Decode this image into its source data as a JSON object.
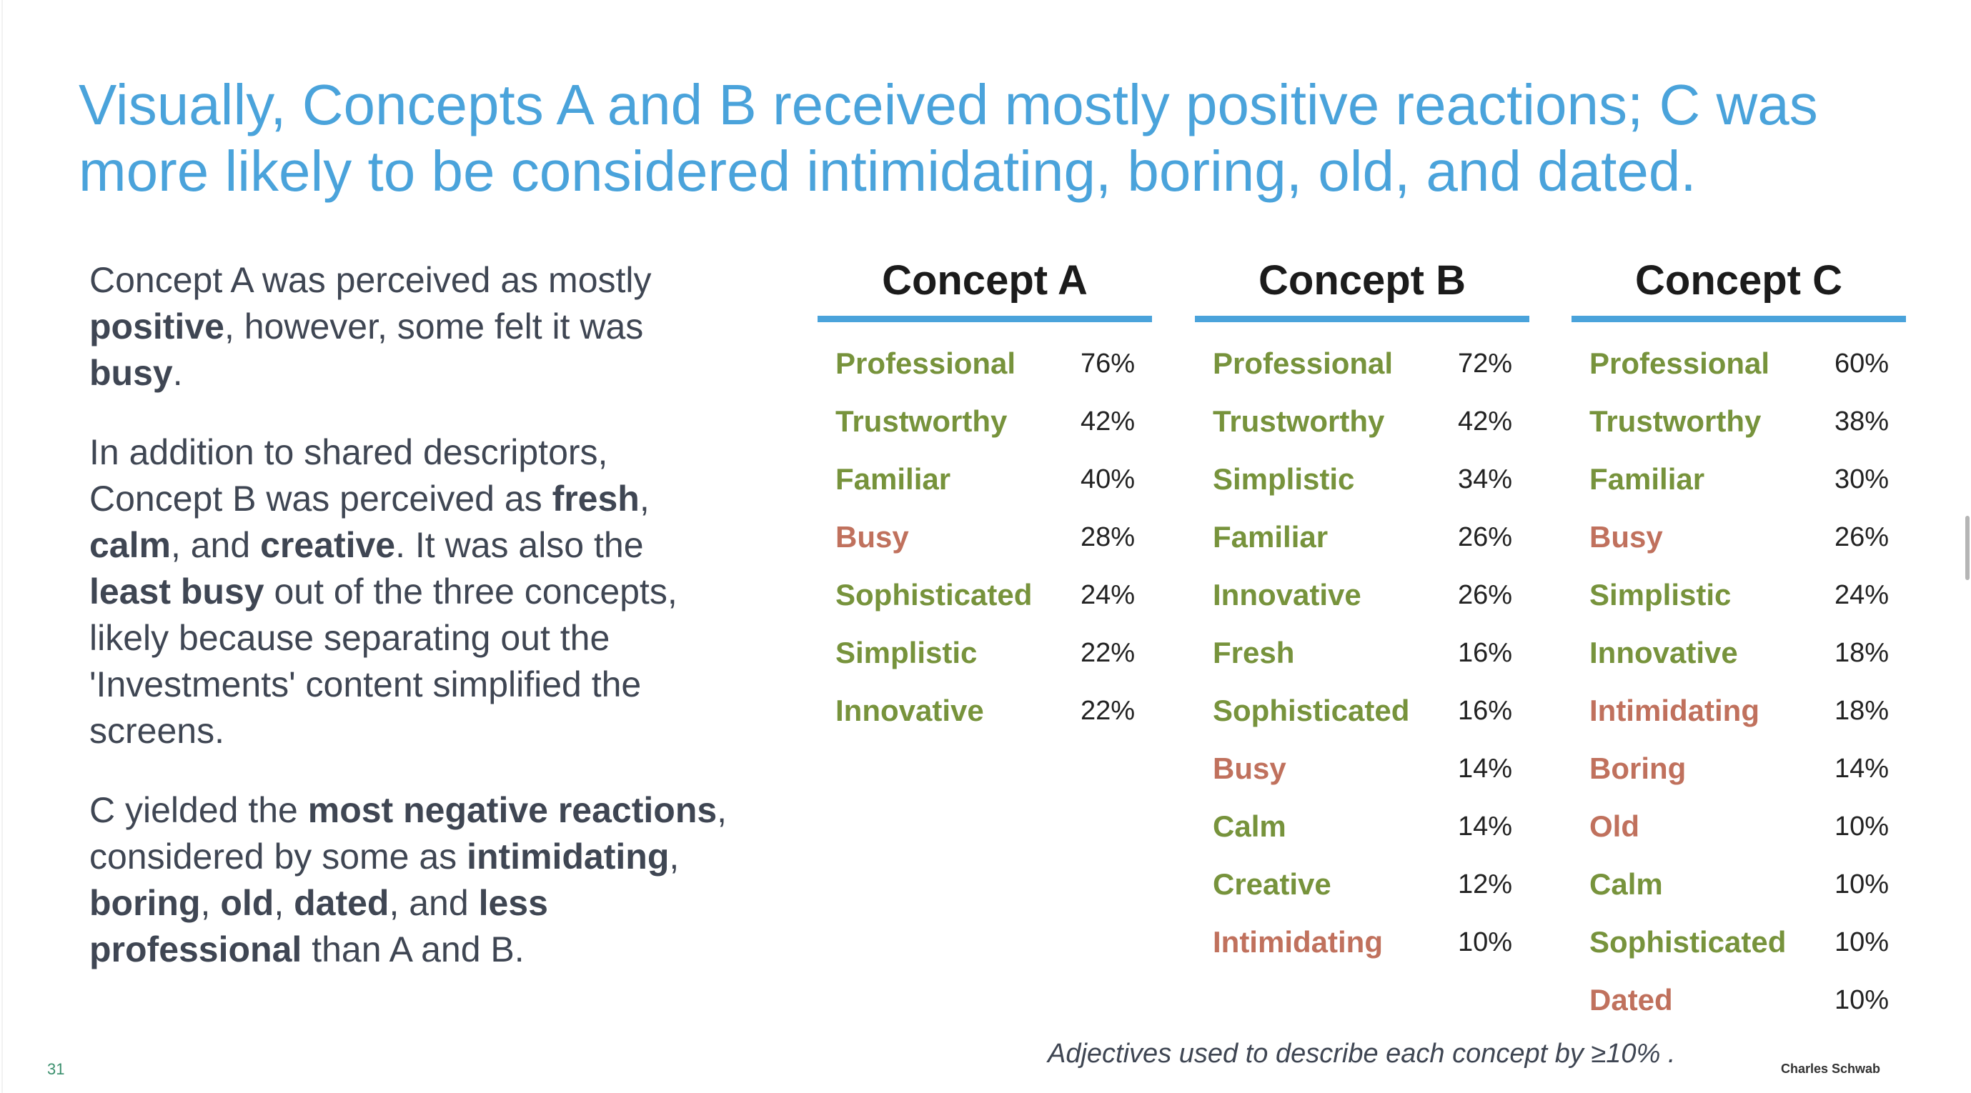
{
  "title": "Visually, Concepts A and B received mostly positive reactions; C was more likely to be considered intimidating, boring, old, and dated.",
  "colors": {
    "accent": "#4aa3db",
    "positive": "#77933c",
    "negative": "#c0715d",
    "body_text": "#3f4653"
  },
  "summary": {
    "p1": {
      "t1": "Concept A was perceived as mostly ",
      "b1": "positive",
      "t2": ", however, some felt it was ",
      "b2": "busy",
      "t3": "."
    },
    "p2": {
      "t1": "In addition to shared descriptors, Concept B was perceived as ",
      "b1": "fresh",
      "t2": ", ",
      "b2": "calm",
      "t3": ", and ",
      "b3": "creative",
      "t4": ". It was also the ",
      "b4": "least busy",
      "t5": " out of the three concepts, likely because separating out the 'Investments' content simplified the screens."
    },
    "p3": {
      "t1": "C yielded the ",
      "b1": "most negative reactions",
      "t2": ", considered by some as ",
      "b2": "intimidating",
      "t3": ", ",
      "b3": "boring",
      "t4": ", ",
      "b4": "old",
      "t5": ", ",
      "b5": "dated",
      "t6": ", and ",
      "b6": "less professional",
      "t7": " than A and B."
    }
  },
  "concepts": [
    {
      "name": "Concept A",
      "adjectives": [
        {
          "label": "Professional",
          "pct": "76%",
          "sentiment": "positive"
        },
        {
          "label": "Trustworthy",
          "pct": "42%",
          "sentiment": "positive"
        },
        {
          "label": "Familiar",
          "pct": "40%",
          "sentiment": "positive"
        },
        {
          "label": "Busy",
          "pct": "28%",
          "sentiment": "negative"
        },
        {
          "label": "Sophisticated",
          "pct": "24%",
          "sentiment": "positive"
        },
        {
          "label": "Simplistic",
          "pct": "22%",
          "sentiment": "positive"
        },
        {
          "label": "Innovative",
          "pct": "22%",
          "sentiment": "positive"
        }
      ]
    },
    {
      "name": "Concept B",
      "adjectives": [
        {
          "label": "Professional",
          "pct": "72%",
          "sentiment": "positive"
        },
        {
          "label": "Trustworthy",
          "pct": "42%",
          "sentiment": "positive"
        },
        {
          "label": "Simplistic",
          "pct": "34%",
          "sentiment": "positive"
        },
        {
          "label": "Familiar",
          "pct": "26%",
          "sentiment": "positive"
        },
        {
          "label": "Innovative",
          "pct": "26%",
          "sentiment": "positive"
        },
        {
          "label": "Fresh",
          "pct": "16%",
          "sentiment": "positive"
        },
        {
          "label": "Sophisticated",
          "pct": "16%",
          "sentiment": "positive"
        },
        {
          "label": "Busy",
          "pct": "14%",
          "sentiment": "negative"
        },
        {
          "label": "Calm",
          "pct": "14%",
          "sentiment": "positive"
        },
        {
          "label": "Creative",
          "pct": "12%",
          "sentiment": "positive"
        },
        {
          "label": "Intimidating",
          "pct": "10%",
          "sentiment": "negative"
        }
      ]
    },
    {
      "name": "Concept C",
      "adjectives": [
        {
          "label": "Professional",
          "pct": "60%",
          "sentiment": "positive"
        },
        {
          "label": "Trustworthy",
          "pct": "38%",
          "sentiment": "positive"
        },
        {
          "label": "Familiar",
          "pct": "30%",
          "sentiment": "positive"
        },
        {
          "label": "Busy",
          "pct": "26%",
          "sentiment": "negative"
        },
        {
          "label": "Simplistic",
          "pct": "24%",
          "sentiment": "positive"
        },
        {
          "label": "Innovative",
          "pct": "18%",
          "sentiment": "positive"
        },
        {
          "label": "Intimidating",
          "pct": "18%",
          "sentiment": "negative"
        },
        {
          "label": "Boring",
          "pct": "14%",
          "sentiment": "negative"
        },
        {
          "label": "Old",
          "pct": "10%",
          "sentiment": "negative"
        },
        {
          "label": "Calm",
          "pct": "10%",
          "sentiment": "positive"
        },
        {
          "label": "Sophisticated",
          "pct": "10%",
          "sentiment": "positive"
        },
        {
          "label": "Dated",
          "pct": "10%",
          "sentiment": "negative"
        }
      ]
    }
  ],
  "footnote": "Adjectives used to describe each concept by ≥10% .",
  "page_number": "31",
  "brand": "Charles Schwab"
}
